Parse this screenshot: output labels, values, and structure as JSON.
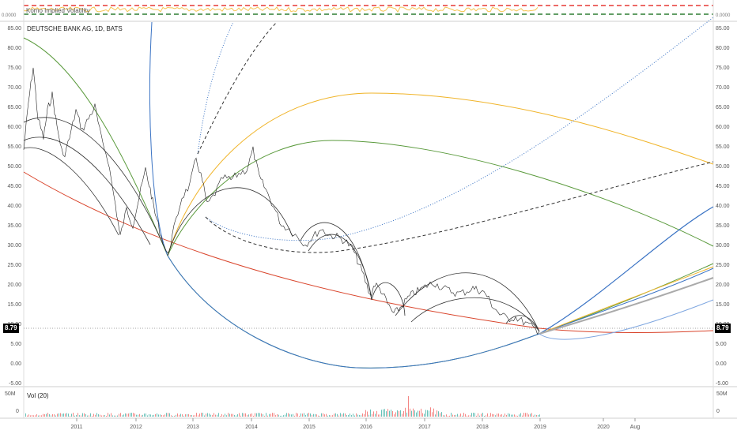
{
  "indicator": {
    "label": "Komo Implied Volatility",
    "left_value": "0.0000",
    "right_value": "0.0000"
  },
  "main": {
    "title": "DEUTSCHE BANK AG, 1D, BATS",
    "y_ticks": [
      "85.00",
      "80.00",
      "75.00",
      "70.00",
      "65.00",
      "60.00",
      "55.00",
      "50.00",
      "45.00",
      "40.00",
      "35.00",
      "30.00",
      "25.00",
      "20.00",
      "15.00",
      "10.00",
      "5.00",
      "0.00",
      "-5.00"
    ],
    "last_price": "8.79"
  },
  "volume": {
    "label": "Vol (20)",
    "top_tick": "50M",
    "bottom_tick": "0"
  },
  "x_axis": {
    "ticks": [
      "2011",
      "2012",
      "2013",
      "2014",
      "2015",
      "2016",
      "2017",
      "2018",
      "2019",
      "2020",
      "Aug"
    ]
  },
  "colors": {
    "price_line": "#222222",
    "black_arcs": "#333333",
    "blue": "#3a73c4",
    "green": "#5a9a3c",
    "gold": "#f0b429",
    "red": "#d9442b",
    "volume_up": "#26a69a",
    "volume_down": "#ef5350",
    "dash_red": "#e53935",
    "dash_green": "#2e7d32"
  }
}
